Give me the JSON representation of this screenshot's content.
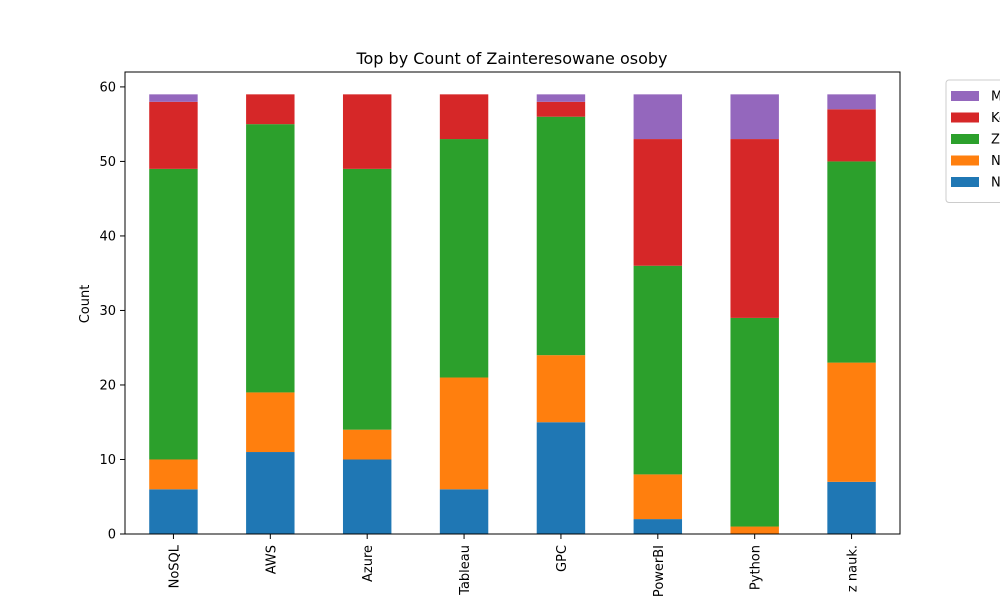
{
  "chart_data": {
    "type": "bar",
    "stacked": true,
    "title": "Top by Count of Zainteresowane osoby",
    "xlabel": "",
    "ylabel": "Count",
    "ylim": [
      0,
      62
    ],
    "yticks": [
      0,
      10,
      20,
      30,
      40,
      50,
      60
    ],
    "categories": [
      "NoSQL",
      "AWS",
      "Azure",
      "Tableau",
      "GPC",
      "PowerBI",
      "Python",
      "z nauk."
    ],
    "legend_position": "outside-top-right",
    "series": [
      {
        "name": "N",
        "color": "#1f77b4",
        "values": [
          6,
          11,
          10,
          6,
          15,
          2,
          0,
          7
        ]
      },
      {
        "name": "N",
        "color": "#ff7f0e",
        "values": [
          4,
          8,
          4,
          15,
          9,
          6,
          1,
          16
        ]
      },
      {
        "name": "Z",
        "color": "#2ca02c",
        "values": [
          39,
          36,
          35,
          32,
          32,
          28,
          28,
          27
        ]
      },
      {
        "name": "Ko",
        "color": "#d62728",
        "values": [
          9,
          4,
          10,
          6,
          2,
          17,
          24,
          7
        ]
      },
      {
        "name": "M",
        "color": "#9467bd",
        "values": [
          1,
          0,
          0,
          0,
          1,
          6,
          6,
          2
        ]
      }
    ]
  }
}
